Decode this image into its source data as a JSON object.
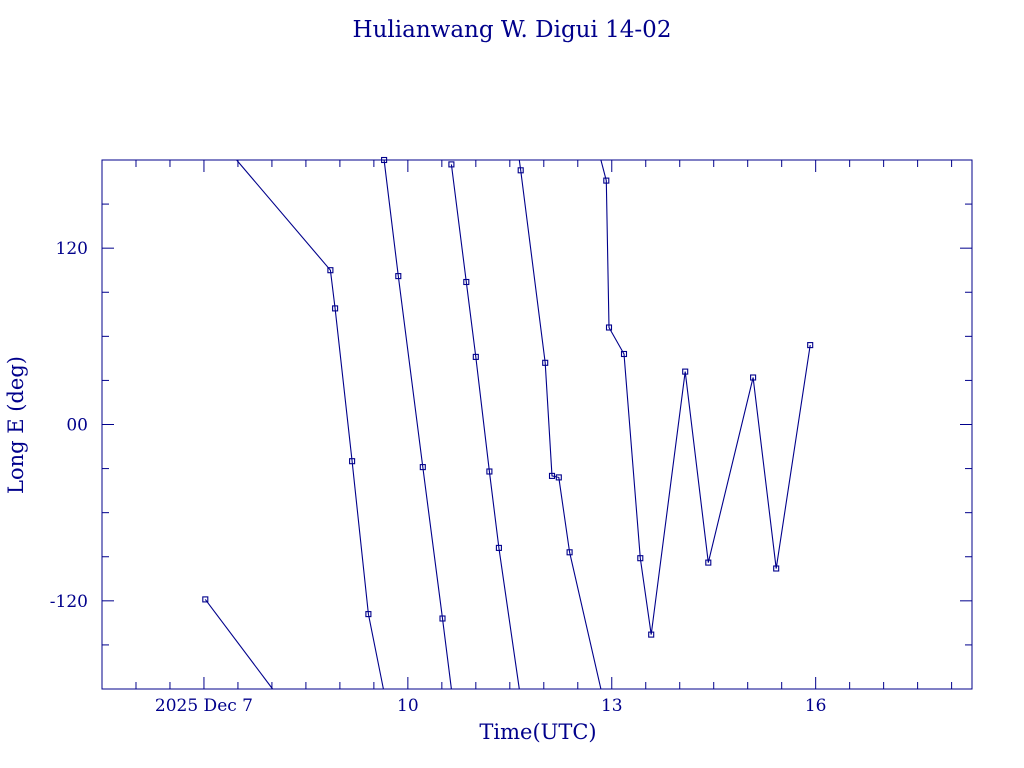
{
  "chart_data": {
    "type": "line",
    "title": "Hulianwang W. Digui 14-02",
    "xlabel": "Time(UTC)",
    "ylabel": "Long E (deg)",
    "x_unit": "days (Dec 2025, UTC)",
    "xlim": [
      5.5,
      18.3
    ],
    "ylim": [
      -180,
      180
    ],
    "x_ticks": [
      {
        "value": 7,
        "label": "2025 Dec  7"
      },
      {
        "value": 10,
        "label": "10"
      },
      {
        "value": 13,
        "label": "13"
      },
      {
        "value": 16,
        "label": "16"
      }
    ],
    "x_minor_ticks": [
      6.0,
      6.5,
      7.0,
      7.5,
      8.0,
      8.5,
      9.0,
      9.5,
      10.0,
      10.5,
      11.0,
      11.5,
      12.0,
      12.5,
      13.0,
      13.5,
      14.0,
      14.5,
      15.0,
      15.5,
      16.0,
      16.5,
      17.0,
      17.5,
      18.0
    ],
    "y_ticks": [
      {
        "value": 120,
        "label": "120"
      },
      {
        "value": 0,
        "label": "00"
      },
      {
        "value": -120,
        "label": "-120"
      }
    ],
    "y_minor_ticks": [
      -150,
      -120,
      -90,
      -60,
      -30,
      0,
      30,
      60,
      90,
      120,
      150
    ],
    "grid": false,
    "legend": "none",
    "color": "#00008b",
    "segments": [
      [
        [
          7.02,
          -119
        ],
        [
          8.01,
          -180
        ]
      ],
      [
        [
          7.48,
          180
        ],
        [
          8.86,
          105
        ],
        [
          8.93,
          79
        ],
        [
          9.18,
          -25
        ],
        [
          9.42,
          -129
        ],
        [
          9.64,
          -180
        ]
      ],
      [
        [
          9.65,
          180
        ],
        [
          9.86,
          101
        ],
        [
          10.22,
          -29
        ],
        [
          10.51,
          -132
        ],
        [
          10.64,
          -180
        ]
      ],
      [
        [
          10.64,
          177
        ],
        [
          10.86,
          97
        ],
        [
          11.0,
          46
        ],
        [
          11.2,
          -32
        ],
        [
          11.34,
          -84
        ],
        [
          11.64,
          -180
        ]
      ],
      [
        [
          11.64,
          180
        ],
        [
          11.66,
          173
        ],
        [
          12.02,
          42
        ],
        [
          12.12,
          -35
        ],
        [
          12.22,
          -36
        ],
        [
          12.38,
          -87
        ],
        [
          12.84,
          -180
        ]
      ],
      [
        [
          12.84,
          180
        ],
        [
          12.92,
          166
        ],
        [
          12.96,
          66
        ],
        [
          13.18,
          48
        ],
        [
          13.42,
          -91
        ],
        [
          13.58,
          -143
        ],
        [
          14.08,
          36
        ],
        [
          14.42,
          -94
        ],
        [
          15.08,
          32
        ],
        [
          15.42,
          -98
        ],
        [
          15.92,
          54
        ]
      ]
    ],
    "markers": [
      [
        7.02,
        -119
      ],
      [
        8.86,
        105
      ],
      [
        8.93,
        79
      ],
      [
        9.18,
        -25
      ],
      [
        9.42,
        -129
      ],
      [
        9.65,
        180
      ],
      [
        9.86,
        101
      ],
      [
        10.22,
        -29
      ],
      [
        10.51,
        -132
      ],
      [
        10.64,
        177
      ],
      [
        10.86,
        97
      ],
      [
        11.0,
        46
      ],
      [
        11.2,
        -32
      ],
      [
        11.34,
        -84
      ],
      [
        11.66,
        173
      ],
      [
        12.02,
        42
      ],
      [
        12.12,
        -35
      ],
      [
        12.22,
        -36
      ],
      [
        12.38,
        -87
      ],
      [
        12.92,
        166
      ],
      [
        12.96,
        66
      ],
      [
        13.18,
        48
      ],
      [
        13.42,
        -91
      ],
      [
        13.58,
        -143
      ],
      [
        14.08,
        36
      ],
      [
        14.42,
        -94
      ],
      [
        15.08,
        32
      ],
      [
        15.42,
        -98
      ],
      [
        15.92,
        54
      ]
    ]
  }
}
